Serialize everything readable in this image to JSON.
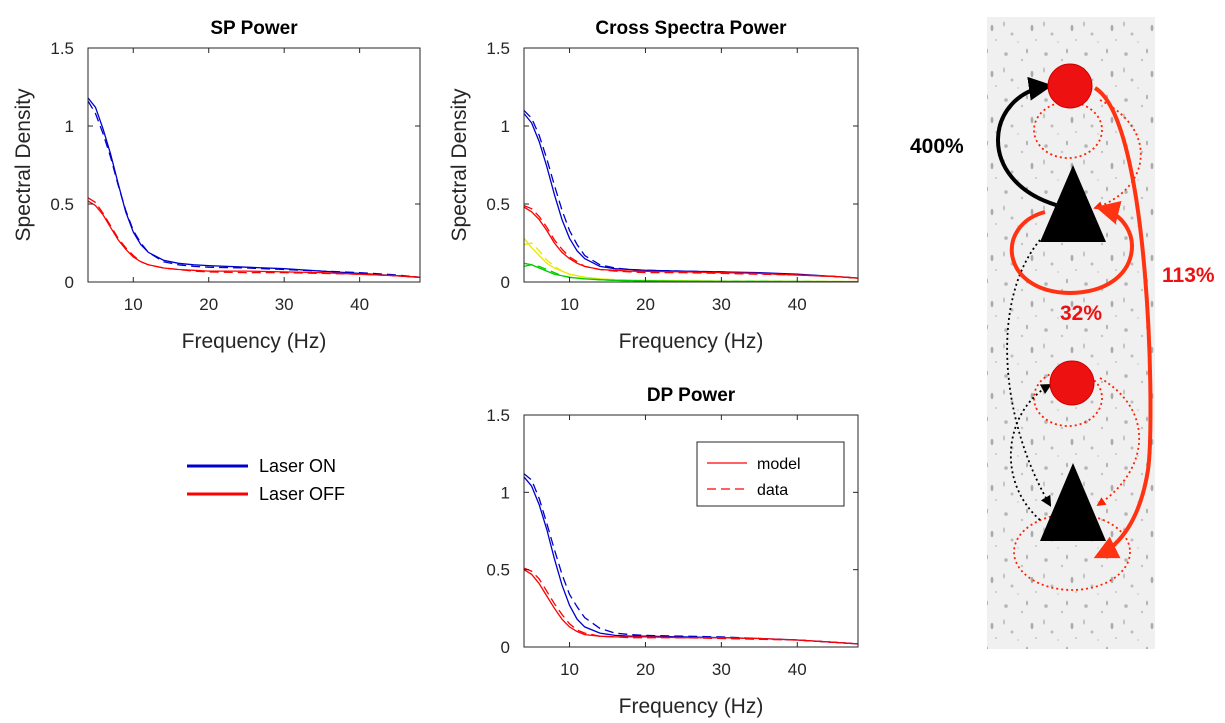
{
  "colors": {
    "laser_on": "#0000cc",
    "laser_off": "#ff0000",
    "yellow": "#e8e800",
    "green": "#00cc00",
    "connection_red": "#ff3311",
    "connection_black": "#000000",
    "node_red": "#ee1111"
  },
  "legend": {
    "entries": [
      {
        "label": "Laser ON",
        "color": "#0000cc"
      },
      {
        "label": "Laser OFF",
        "color": "#ff0000"
      }
    ]
  },
  "chart_data": [
    {
      "id": "sp",
      "type": "line",
      "title": "SP Power",
      "xlabel": "Frequency (Hz)",
      "ylabel": "Spectral Density",
      "xlim": [
        4,
        48
      ],
      "ylim": [
        0,
        1.5
      ],
      "xticks": [
        10,
        20,
        30,
        40
      ],
      "yticks": [
        0,
        0.5,
        1,
        1.5
      ],
      "grid": false,
      "series": [
        {
          "color": "#0000cc",
          "dash": "solid",
          "x": [
            4,
            5,
            6,
            7,
            8,
            9,
            10,
            11,
            12,
            14,
            16,
            18,
            20,
            25,
            30,
            35,
            40,
            45,
            48
          ],
          "y": [
            1.18,
            1.12,
            0.98,
            0.82,
            0.63,
            0.45,
            0.32,
            0.24,
            0.19,
            0.14,
            0.12,
            0.11,
            0.105,
            0.095,
            0.085,
            0.07,
            0.055,
            0.04,
            0.03
          ]
        },
        {
          "color": "#0000cc",
          "dash": "dashed",
          "x": [
            4,
            5,
            6,
            7,
            8,
            9,
            10,
            11,
            12,
            14,
            16,
            18,
            20,
            25,
            30,
            35,
            40,
            45,
            48
          ],
          "y": [
            1.16,
            1.08,
            0.95,
            0.8,
            0.62,
            0.46,
            0.33,
            0.25,
            0.19,
            0.13,
            0.11,
            0.1,
            0.095,
            0.09,
            0.08,
            0.07,
            0.06,
            0.045,
            0.03
          ]
        },
        {
          "color": "#ff0000",
          "dash": "solid",
          "x": [
            4,
            5,
            6,
            7,
            8,
            9,
            10,
            11,
            12,
            14,
            16,
            18,
            20,
            25,
            30,
            35,
            40,
            45,
            48
          ],
          "y": [
            0.52,
            0.49,
            0.43,
            0.35,
            0.27,
            0.21,
            0.16,
            0.13,
            0.11,
            0.09,
            0.08,
            0.075,
            0.07,
            0.07,
            0.065,
            0.06,
            0.05,
            0.04,
            0.03
          ]
        },
        {
          "color": "#ff0000",
          "dash": "dashed",
          "x": [
            4,
            5,
            6,
            7,
            8,
            9,
            10,
            11,
            12,
            14,
            16,
            18,
            20,
            25,
            30,
            35,
            40,
            45,
            48
          ],
          "y": [
            0.54,
            0.51,
            0.44,
            0.36,
            0.28,
            0.22,
            0.17,
            0.13,
            0.11,
            0.09,
            0.08,
            0.07,
            0.065,
            0.06,
            0.06,
            0.055,
            0.05,
            0.04,
            0.03
          ]
        }
      ]
    },
    {
      "id": "cross",
      "type": "line",
      "title": "Cross Spectra Power",
      "xlabel": "Frequency (Hz)",
      "ylabel": "Spectral Density",
      "xlim": [
        4,
        48
      ],
      "ylim": [
        0,
        1.5
      ],
      "xticks": [
        10,
        20,
        30,
        40
      ],
      "yticks": [
        0,
        0.5,
        1,
        1.5
      ],
      "grid": false,
      "series": [
        {
          "color": "#0000cc",
          "dash": "solid",
          "x": [
            4,
            5,
            6,
            7,
            8,
            9,
            10,
            11,
            12,
            14,
            16,
            18,
            20,
            25,
            30,
            35,
            40,
            45,
            48
          ],
          "y": [
            1.08,
            1.02,
            0.9,
            0.74,
            0.56,
            0.4,
            0.28,
            0.2,
            0.15,
            0.1,
            0.085,
            0.08,
            0.075,
            0.07,
            0.065,
            0.06,
            0.05,
            0.035,
            0.025
          ]
        },
        {
          "color": "#0000cc",
          "dash": "dashed",
          "x": [
            4,
            5,
            6,
            7,
            8,
            9,
            10,
            11,
            12,
            14,
            16,
            18,
            20,
            25,
            30,
            35,
            40,
            45,
            48
          ],
          "y": [
            1.1,
            1.05,
            0.94,
            0.79,
            0.62,
            0.46,
            0.33,
            0.24,
            0.17,
            0.11,
            0.09,
            0.08,
            0.075,
            0.07,
            0.065,
            0.055,
            0.045,
            0.035,
            0.025
          ]
        },
        {
          "color": "#ff0000",
          "dash": "solid",
          "x": [
            4,
            5,
            6,
            7,
            8,
            9,
            10,
            11,
            12,
            14,
            16,
            18,
            20,
            25,
            30,
            35,
            40,
            45,
            48
          ],
          "y": [
            0.48,
            0.45,
            0.4,
            0.33,
            0.25,
            0.19,
            0.15,
            0.12,
            0.1,
            0.08,
            0.075,
            0.07,
            0.068,
            0.065,
            0.06,
            0.055,
            0.045,
            0.035,
            0.025
          ]
        },
        {
          "color": "#ff0000",
          "dash": "dashed",
          "x": [
            4,
            5,
            6,
            7,
            8,
            9,
            10,
            11,
            12,
            14,
            16,
            18,
            20,
            25,
            30,
            35,
            40,
            45,
            48
          ],
          "y": [
            0.49,
            0.47,
            0.42,
            0.35,
            0.27,
            0.21,
            0.16,
            0.13,
            0.1,
            0.08,
            0.07,
            0.065,
            0.06,
            0.06,
            0.055,
            0.05,
            0.045,
            0.035,
            0.025
          ]
        },
        {
          "color": "#e8e800",
          "dash": "solid",
          "x": [
            4,
            5,
            6,
            7,
            8,
            9,
            10,
            12,
            14,
            16,
            20,
            25,
            30,
            40,
            48
          ],
          "y": [
            0.28,
            0.22,
            0.17,
            0.12,
            0.09,
            0.07,
            0.05,
            0.03,
            0.02,
            0.015,
            0.01,
            0.008,
            0.006,
            0.004,
            0.003
          ]
        },
        {
          "color": "#e8e800",
          "dash": "dashed",
          "x": [
            4,
            5,
            6,
            7,
            8,
            9,
            10,
            12,
            14,
            16,
            20,
            25,
            30,
            40,
            48
          ],
          "y": [
            0.24,
            0.25,
            0.2,
            0.14,
            0.1,
            0.07,
            0.05,
            0.03,
            0.02,
            0.015,
            0.01,
            0.008,
            0.006,
            0.004,
            0.003
          ]
        },
        {
          "color": "#00cc00",
          "dash": "solid",
          "x": [
            4,
            5,
            6,
            7,
            8,
            9,
            10,
            12,
            14,
            16,
            20,
            25,
            30,
            40,
            48
          ],
          "y": [
            0.12,
            0.11,
            0.09,
            0.07,
            0.05,
            0.04,
            0.03,
            0.02,
            0.015,
            0.01,
            0.007,
            0.005,
            0.004,
            0.003,
            0.002
          ]
        },
        {
          "color": "#00cc00",
          "dash": "dashed",
          "x": [
            4,
            5,
            6,
            7,
            8,
            9,
            10,
            12,
            14,
            16,
            20,
            25,
            30,
            40,
            48
          ],
          "y": [
            0.1,
            0.11,
            0.1,
            0.08,
            0.06,
            0.04,
            0.03,
            0.02,
            0.015,
            0.01,
            0.007,
            0.005,
            0.004,
            0.003,
            0.002
          ]
        }
      ]
    },
    {
      "id": "dp",
      "type": "line",
      "title": "DP Power",
      "xlabel": "Frequency (Hz)",
      "ylabel": "",
      "xlim": [
        4,
        48
      ],
      "ylim": [
        0,
        1.5
      ],
      "xticks": [
        10,
        20,
        30,
        40
      ],
      "yticks": [
        0,
        0.5,
        1,
        1.5
      ],
      "grid": false,
      "legend": {
        "placement": "top-right",
        "entries": [
          {
            "label": "model",
            "dash": "solid",
            "color": "#ff0000"
          },
          {
            "label": "data",
            "dash": "dashed",
            "color": "#ff0000"
          }
        ]
      },
      "series": [
        {
          "color": "#0000cc",
          "dash": "solid",
          "x": [
            4,
            5,
            6,
            7,
            8,
            9,
            10,
            11,
            12,
            14,
            16,
            18,
            20,
            25,
            30,
            35,
            40,
            45,
            48
          ],
          "y": [
            1.1,
            1.04,
            0.92,
            0.76,
            0.57,
            0.4,
            0.27,
            0.18,
            0.13,
            0.09,
            0.075,
            0.07,
            0.07,
            0.065,
            0.06,
            0.055,
            0.045,
            0.03,
            0.02
          ]
        },
        {
          "color": "#0000cc",
          "dash": "dashed",
          "x": [
            4,
            5,
            6,
            7,
            8,
            9,
            10,
            11,
            12,
            14,
            16,
            18,
            20,
            25,
            30,
            35,
            40,
            45,
            48
          ],
          "y": [
            1.12,
            1.08,
            0.96,
            0.8,
            0.63,
            0.47,
            0.34,
            0.26,
            0.19,
            0.12,
            0.09,
            0.08,
            0.075,
            0.07,
            0.065,
            0.055,
            0.045,
            0.03,
            0.02
          ]
        },
        {
          "color": "#ff0000",
          "dash": "solid",
          "x": [
            4,
            5,
            6,
            7,
            8,
            9,
            10,
            11,
            12,
            14,
            16,
            18,
            20,
            25,
            30,
            35,
            40,
            45,
            48
          ],
          "y": [
            0.5,
            0.47,
            0.41,
            0.33,
            0.25,
            0.18,
            0.13,
            0.1,
            0.08,
            0.07,
            0.065,
            0.065,
            0.065,
            0.06,
            0.06,
            0.055,
            0.045,
            0.03,
            0.02
          ]
        },
        {
          "color": "#ff0000",
          "dash": "dashed",
          "x": [
            4,
            5,
            6,
            7,
            8,
            9,
            10,
            11,
            12,
            14,
            16,
            18,
            20,
            25,
            30,
            35,
            40,
            45,
            48
          ],
          "y": [
            0.51,
            0.49,
            0.44,
            0.36,
            0.28,
            0.21,
            0.15,
            0.11,
            0.09,
            0.07,
            0.065,
            0.06,
            0.06,
            0.06,
            0.055,
            0.05,
            0.045,
            0.03,
            0.02
          ]
        }
      ]
    }
  ],
  "diagram": {
    "labels": {
      "pct_black": "400%",
      "pct_red_right": "113%",
      "pct_red_self": "32%"
    }
  }
}
